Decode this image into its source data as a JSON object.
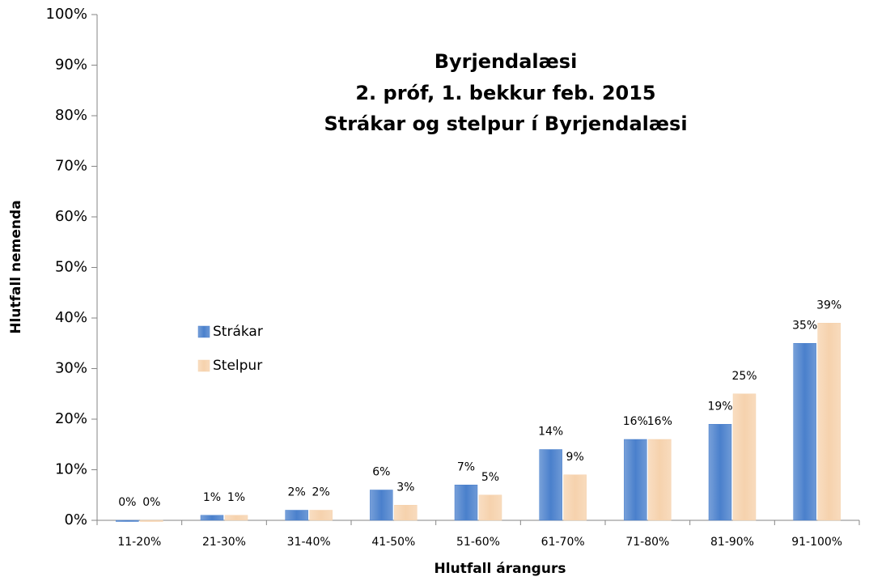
{
  "chart_data": {
    "type": "bar",
    "title": [
      "Byrjendalæsi",
      "2. próf, 1. bekkur feb. 2015",
      "Strákar og stelpur í Byrjendalæsi"
    ],
    "x_label": "Hlutfall árangurs",
    "y_label": "Hlutfall nemenda",
    "categories": [
      "11-20%",
      "21-30%",
      "31-40%",
      "41-50%",
      "51-60%",
      "61-70%",
      "71-80%",
      "81-90%",
      "91-100%"
    ],
    "series": [
      {
        "name": "Strákar",
        "color": "#4a80cc",
        "values": [
          0,
          1,
          2,
          6,
          7,
          14,
          16,
          19,
          35
        ],
        "value_labels": [
          "0%",
          "1%",
          "2%",
          "6%",
          "7%",
          "14%",
          "16%",
          "19%",
          "35%"
        ]
      },
      {
        "name": "Stelpur",
        "color": "#f6d2ad",
        "values": [
          0,
          1,
          2,
          3,
          5,
          9,
          16,
          25,
          39
        ],
        "value_labels": [
          "0%",
          "1%",
          "2%",
          "3%",
          "5%",
          "9%",
          "16%",
          "25%",
          "39%"
        ]
      }
    ],
    "ylim": [
      0,
      100
    ],
    "yticks": [
      {
        "value": 0,
        "label": "0%"
      },
      {
        "value": 10,
        "label": "10%"
      },
      {
        "value": 20,
        "label": "20%"
      },
      {
        "value": 30,
        "label": "30%"
      },
      {
        "value": 40,
        "label": "40%"
      },
      {
        "value": 50,
        "label": "50%"
      },
      {
        "value": 60,
        "label": "60%"
      },
      {
        "value": 70,
        "label": "70%"
      },
      {
        "value": 80,
        "label": "80%"
      },
      {
        "value": 90,
        "label": "90%"
      },
      {
        "value": 100,
        "label": "100%"
      }
    ],
    "grid": false,
    "legend": "left"
  }
}
